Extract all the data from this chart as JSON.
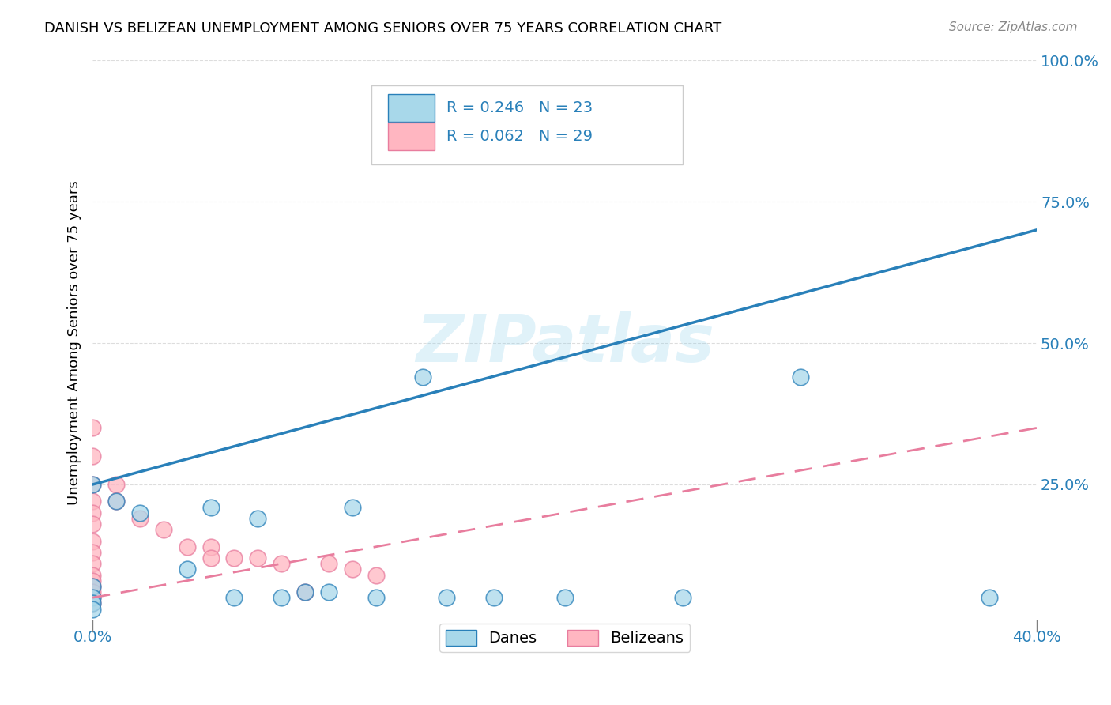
{
  "title": "DANISH VS BELIZEAN UNEMPLOYMENT AMONG SENIORS OVER 75 YEARS CORRELATION CHART",
  "source": "Source: ZipAtlas.com",
  "ylabel": "Unemployment Among Seniors over 75 years",
  "xlim": [
    0.0,
    0.4
  ],
  "ylim": [
    0.0,
    1.0
  ],
  "dane_R": 0.246,
  "dane_N": 23,
  "belizean_R": 0.062,
  "belizean_N": 29,
  "dane_color": "#a8d8ea",
  "belizean_color": "#ffb6c1",
  "dane_line_color": "#2980b9",
  "belizean_line_color": "#e87d9e",
  "watermark": "ZIPatlas",
  "danes_x": [
    0.0,
    0.0,
    0.0,
    0.0,
    0.0,
    0.01,
    0.02,
    0.04,
    0.05,
    0.06,
    0.07,
    0.08,
    0.09,
    0.1,
    0.11,
    0.12,
    0.14,
    0.15,
    0.17,
    0.2,
    0.25,
    0.3,
    0.38
  ],
  "danes_y": [
    0.25,
    0.07,
    0.05,
    0.04,
    0.03,
    0.22,
    0.2,
    0.1,
    0.21,
    0.05,
    0.19,
    0.05,
    0.06,
    0.06,
    0.21,
    0.05,
    0.44,
    0.05,
    0.05,
    0.05,
    0.05,
    0.44,
    0.05
  ],
  "belizeans_x": [
    0.0,
    0.0,
    0.0,
    0.0,
    0.0,
    0.0,
    0.0,
    0.0,
    0.0,
    0.0,
    0.0,
    0.0,
    0.0,
    0.0,
    0.0,
    0.01,
    0.01,
    0.02,
    0.03,
    0.04,
    0.05,
    0.05,
    0.06,
    0.07,
    0.08,
    0.09,
    0.1,
    0.11,
    0.12
  ],
  "belizeans_y": [
    0.35,
    0.3,
    0.25,
    0.22,
    0.2,
    0.18,
    0.15,
    0.13,
    0.11,
    0.09,
    0.08,
    0.07,
    0.06,
    0.05,
    0.04,
    0.25,
    0.22,
    0.19,
    0.17,
    0.14,
    0.14,
    0.12,
    0.12,
    0.12,
    0.11,
    0.06,
    0.11,
    0.1,
    0.09
  ],
  "background_color": "#ffffff",
  "grid_color": "#dddddd"
}
